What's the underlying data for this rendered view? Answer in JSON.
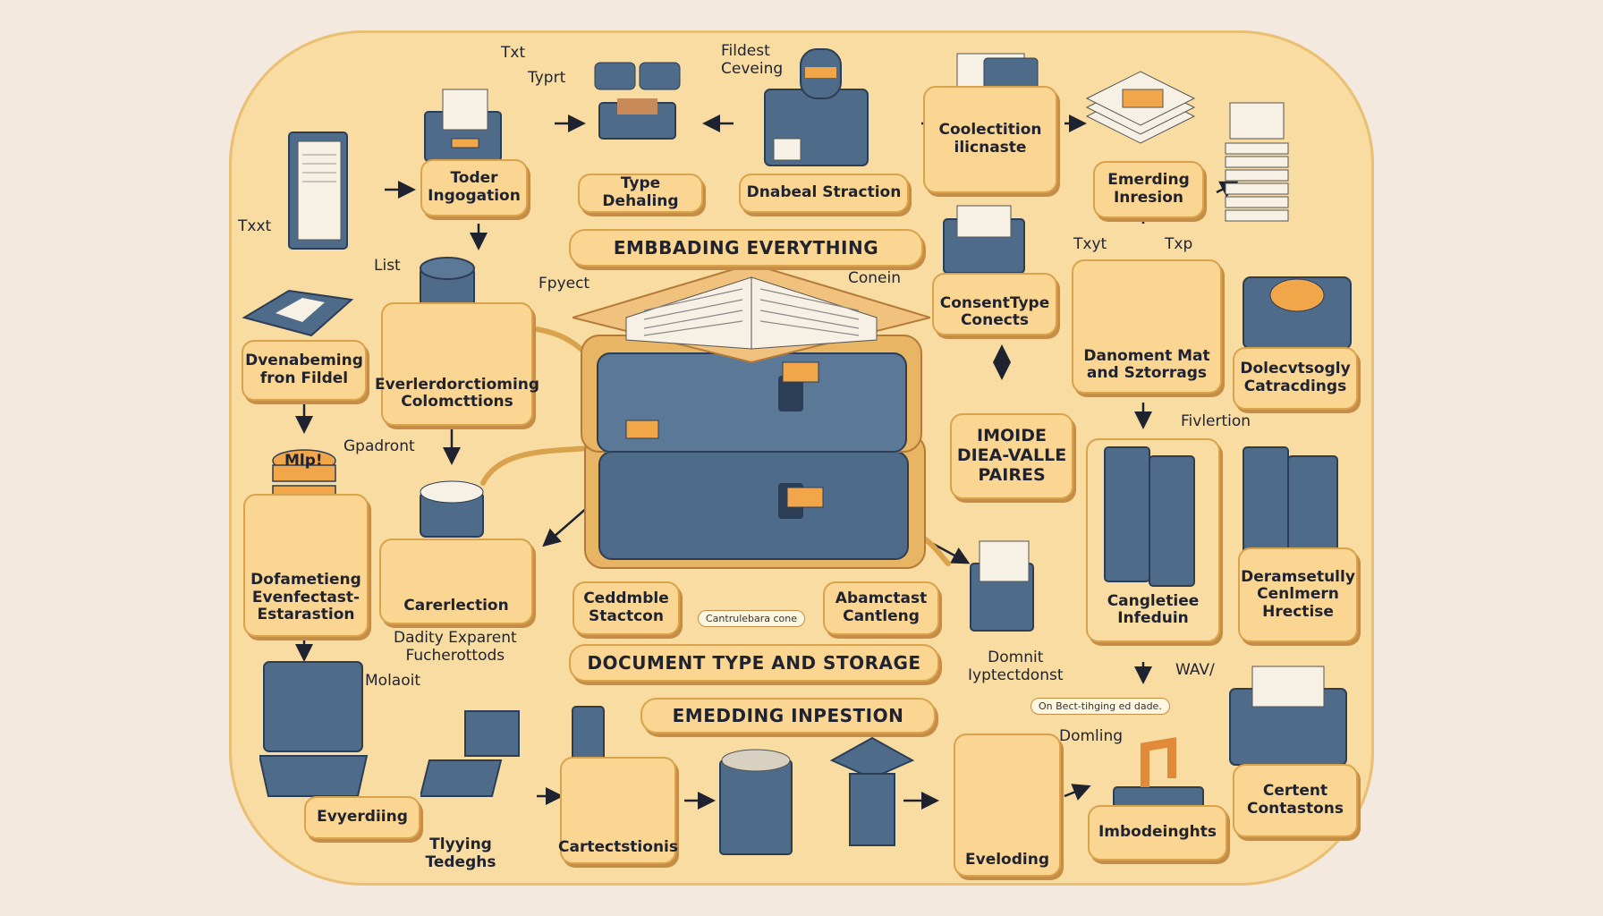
{
  "banners": {
    "embedding_everything": "EMBBADING EVERYTHING",
    "document_type_storage": "DOCUMENT TYPE AND STORAGE",
    "embedding_inpestion": "EMEDDING   INPESTION"
  },
  "boxes": {
    "toder": "Toder\nIngogation",
    "type_dehaling": "Type Dehaling",
    "dnabeal": "Dnabeal Straction",
    "coollection": "Coolectition\nilicnaste",
    "emerding_inresion": "Emerding\nInresion",
    "dvenabeming": "Dvenabeming\nfron Fildel",
    "everlerdoctioming": "Everlerdorctioming\nColomcttions",
    "consent_type": "ConsentType\nConects",
    "danoment_mat": "Danoment Mat\nand Sztorrags",
    "dolecvtsogly": "Dolecvtsogly\nCatracdings",
    "imoide": "IMOIDE\nDIEA-VALLE\nPAIRES",
    "dofametieng": "Dofametieng\nEvenfectast-\nEstarastion",
    "carerlection": "Carerlection",
    "ceddmble": "Ceddmble\nStactcon",
    "abamctast": "Abamctast\nCantleng",
    "cangletiee": "Cangletiee\nInfeduin",
    "deramsetully": "Deramsetully\nCenlmern\nHrectise",
    "everyding": "Evyerdiing",
    "tlyying": "Tlyying\nTedeghs",
    "cartectsionis": "Cartectstionis",
    "eveloding": "Eveloding",
    "imbodeinghts": "Imbodeinghts",
    "certent": "Certent\nContastons"
  },
  "free_labels": {
    "txt_top": "Txt",
    "typrt": "Typrt",
    "fildest": "Fildest\nCeveing",
    "txxt_left": "Txxt",
    "list": "List",
    "fpyect": "Fpyect",
    "conein": "Conein",
    "txyt": "Txyt",
    "txp": "Txp",
    "gpadront": "Gpadront",
    "mips": "Mlp!",
    "fivlertion": "Fivlertion",
    "dadity": "Dadity Exparent\nFucherottods",
    "molaoit": "Molaoit",
    "domnit": "Domnit\nIyptectdonst",
    "wav": "WAV/",
    "domling": "Domling",
    "cantrulebara": "Cantrulebara cone",
    "on_bect": "On Bect-tihging ed dade."
  },
  "colors": {
    "background": "#f4e9df",
    "board": "#f8dca2",
    "label_fill": "#fbd592",
    "slate": "#4f6b8a",
    "ink": "#1f2330"
  },
  "icons": [
    "document-icon",
    "drawer-icon",
    "database-icon",
    "open-book-icon",
    "binder-icon",
    "laptop-icon",
    "filing-cabinet-icon",
    "coins-icon",
    "box-icon"
  ]
}
